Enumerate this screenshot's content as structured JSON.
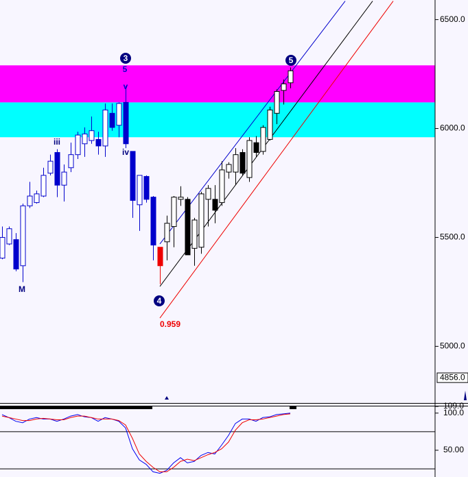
{
  "chart_data": [
    {
      "type": "candlestick",
      "categories": [
        null,
        null,
        null,
        null,
        null,
        null,
        null,
        null,
        null,
        null,
        null,
        null,
        null,
        null,
        null,
        null,
        null,
        null,
        null,
        null,
        null,
        null,
        null,
        null,
        null,
        null,
        null,
        null,
        null,
        null,
        null,
        null,
        null,
        null,
        null,
        null,
        null,
        null,
        null,
        null,
        null,
        null,
        null
      ],
      "open": [
        5405,
        5470,
        5490,
        5370,
        5645,
        5660,
        5690,
        5795,
        5890,
        5740,
        5820,
        5880,
        5930,
        5945,
        5950,
        5920,
        6070,
        6015,
        6120,
        5895,
        5650,
        5780,
        5685,
        5455,
        5480,
        5550,
        5675,
        5675,
        5450,
        5455,
        5675,
        5675,
        5660,
        5800,
        5800,
        5890,
        5775,
        5935,
        5895,
        5950,
        6070,
        6175,
        6210
      ],
      "high": [
        5550,
        5550,
        5520,
        5655,
        5755,
        5715,
        5820,
        5880,
        5905,
        5835,
        5935,
        5985,
        6005,
        6055,
        5985,
        6115,
        6115,
        6120,
        6195,
        5895,
        5785,
        5785,
        5690,
        5455,
        5600,
        5690,
        5735,
        5685,
        5590,
        5710,
        5740,
        5740,
        5850,
        5845,
        5910,
        5905,
        5960,
        5965,
        6015,
        6100,
        6180,
        6225,
        6280
      ],
      "low": [
        5400,
        5465,
        5345,
        5295,
        5635,
        5655,
        5685,
        5785,
        5685,
        5665,
        5800,
        5860,
        5870,
        5930,
        5880,
        5870,
        5990,
        5960,
        5910,
        5590,
        5530,
        5660,
        5395,
        5285,
        5395,
        5455,
        5645,
        5420,
        5370,
        5425,
        5550,
        5565,
        5645,
        5770,
        5740,
        5785,
        5755,
        5870,
        5880,
        5945,
        6020,
        6110,
        6185
      ],
      "close": [
        5500,
        5540,
        5355,
        5645,
        5690,
        5700,
        5785,
        5850,
        5740,
        5800,
        5880,
        5970,
        5975,
        5990,
        5920,
        6085,
        6005,
        6115,
        5930,
        5670,
        5785,
        5675,
        5465,
        5370,
        5565,
        5685,
        5685,
        5420,
        5580,
        5700,
        5725,
        5625,
        5810,
        5835,
        5880,
        5795,
        5945,
        5890,
        6005,
        6085,
        6170,
        6205,
        6265
      ],
      "colors": [
        "#0000cc",
        "#0000cc",
        "#0000cc",
        "#0000cc",
        "#0000cc",
        "#0000cc",
        "#0000cc",
        "#0000cc",
        "#0000cc",
        "#0000cc",
        "#0000cc",
        "#0000cc",
        "#0000cc",
        "#0000cc",
        "#0000cc",
        "#0000cc",
        "#0000cc",
        "#0000cc",
        "#0000cc",
        "#0000cc",
        "#0000cc",
        "#0000cc",
        "#0000cc",
        "#ee0000",
        "#000000",
        "#000000",
        "#000000",
        "#000000",
        "#000000",
        "#000000",
        "#000000",
        "#000000",
        "#000000",
        "#000000",
        "#000000",
        "#000000",
        "#000000",
        "#000000",
        "#000000",
        "#000000",
        "#000000",
        "#000000",
        "#000000"
      ],
      "ylim": [
        4740,
        6590
      ],
      "yticks": [
        {
          "value": 5000,
          "label": "5000.0"
        },
        {
          "value": 5500,
          "label": "5500.0"
        },
        {
          "value": 6000,
          "label": "6000.0"
        },
        {
          "value": 6500,
          "label": "6500.0"
        }
      ],
      "last_price": {
        "value": 4856,
        "label": "4856.0"
      },
      "zones": [
        {
          "from": 5960,
          "to": 6120,
          "color": "#00ffff"
        },
        {
          "from": 6120,
          "to": 6290,
          "color": "#ff00ff"
        }
      ],
      "trendlines": [
        {
          "color": "#0000cc",
          "points": [
            [
              23,
              5470
            ],
            [
              50,
              6585
            ]
          ]
        },
        {
          "color": "#000000",
          "points": [
            [
              23,
              5275
            ],
            [
              54,
              6585
            ]
          ]
        },
        {
          "color": "#ee0000",
          "points": [
            [
              23,
              5130
            ],
            [
              57,
              6585
            ]
          ]
        }
      ],
      "annotations": [
        "3",
        "5",
        "v",
        "iii",
        "iv",
        "M",
        "4",
        "0.959",
        "5"
      ]
    },
    {
      "type": "line",
      "categories": [
        null,
        null,
        null,
        null,
        null,
        null,
        null,
        null,
        null,
        null,
        null,
        null,
        null,
        null,
        null,
        null,
        null,
        null,
        null,
        null,
        null,
        null,
        null,
        null,
        null,
        null,
        null,
        null,
        null,
        null,
        null,
        null,
        null,
        null,
        null,
        null,
        null,
        null,
        null,
        null,
        null,
        null,
        null
      ],
      "series": [
        {
          "color": "#0000ee",
          "values": [
            98,
            94,
            89,
            87,
            92,
            94,
            92,
            92,
            89,
            92,
            96,
            98,
            95,
            94,
            89,
            94,
            92,
            89,
            80,
            52,
            37,
            31,
            21,
            19,
            23,
            33,
            40,
            33,
            35,
            43,
            47,
            45,
            57,
            70,
            86,
            92,
            92,
            89,
            94,
            95,
            98,
            99,
            100
          ]
        },
        {
          "color": "#ee0000",
          "values": [
            96,
            94,
            92,
            90,
            90,
            92,
            93,
            92,
            91,
            91,
            94,
            96,
            96,
            94,
            92,
            92,
            92,
            90,
            84,
            66,
            45,
            35,
            27,
            21,
            21,
            27,
            35,
            38,
            36,
            40,
            44,
            47,
            52,
            61,
            77,
            87,
            91,
            91,
            92,
            94,
            96,
            98,
            99
          ]
        }
      ],
      "levels": [
        75,
        25
      ],
      "ylim": [
        14,
        109
      ],
      "yticks": [
        {
          "value": 109,
          "label": "109.0"
        },
        {
          "value": 100,
          "label": "100.0"
        },
        {
          "value": 50,
          "label": "50.00"
        }
      ]
    }
  ]
}
